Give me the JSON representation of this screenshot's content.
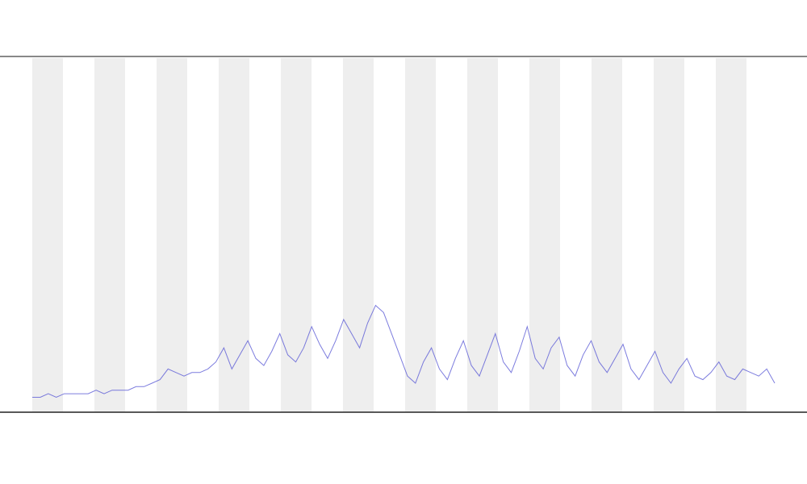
{
  "chart_data": {
    "type": "line",
    "color": "#5b5bd6",
    "ylim": [
      0,
      100
    ],
    "values": [
      4,
      4,
      5,
      4,
      5,
      5,
      5,
      5,
      6,
      5,
      6,
      6,
      6,
      7,
      7,
      8,
      9,
      12,
      11,
      10,
      11,
      11,
      12,
      14,
      18,
      12,
      16,
      20,
      15,
      13,
      17,
      22,
      16,
      14,
      18,
      24,
      19,
      15,
      20,
      26,
      22,
      18,
      25,
      30,
      28,
      22,
      16,
      10,
      8,
      14,
      18,
      12,
      9,
      15,
      20,
      13,
      10,
      16,
      22,
      14,
      11,
      17,
      24,
      15,
      12,
      18,
      21,
      13,
      10,
      16,
      20,
      14,
      11,
      15,
      19,
      12,
      9,
      13,
      17,
      11,
      8,
      12,
      15,
      10,
      9,
      11,
      14,
      10,
      9,
      12,
      11,
      10,
      12,
      8
    ]
  }
}
